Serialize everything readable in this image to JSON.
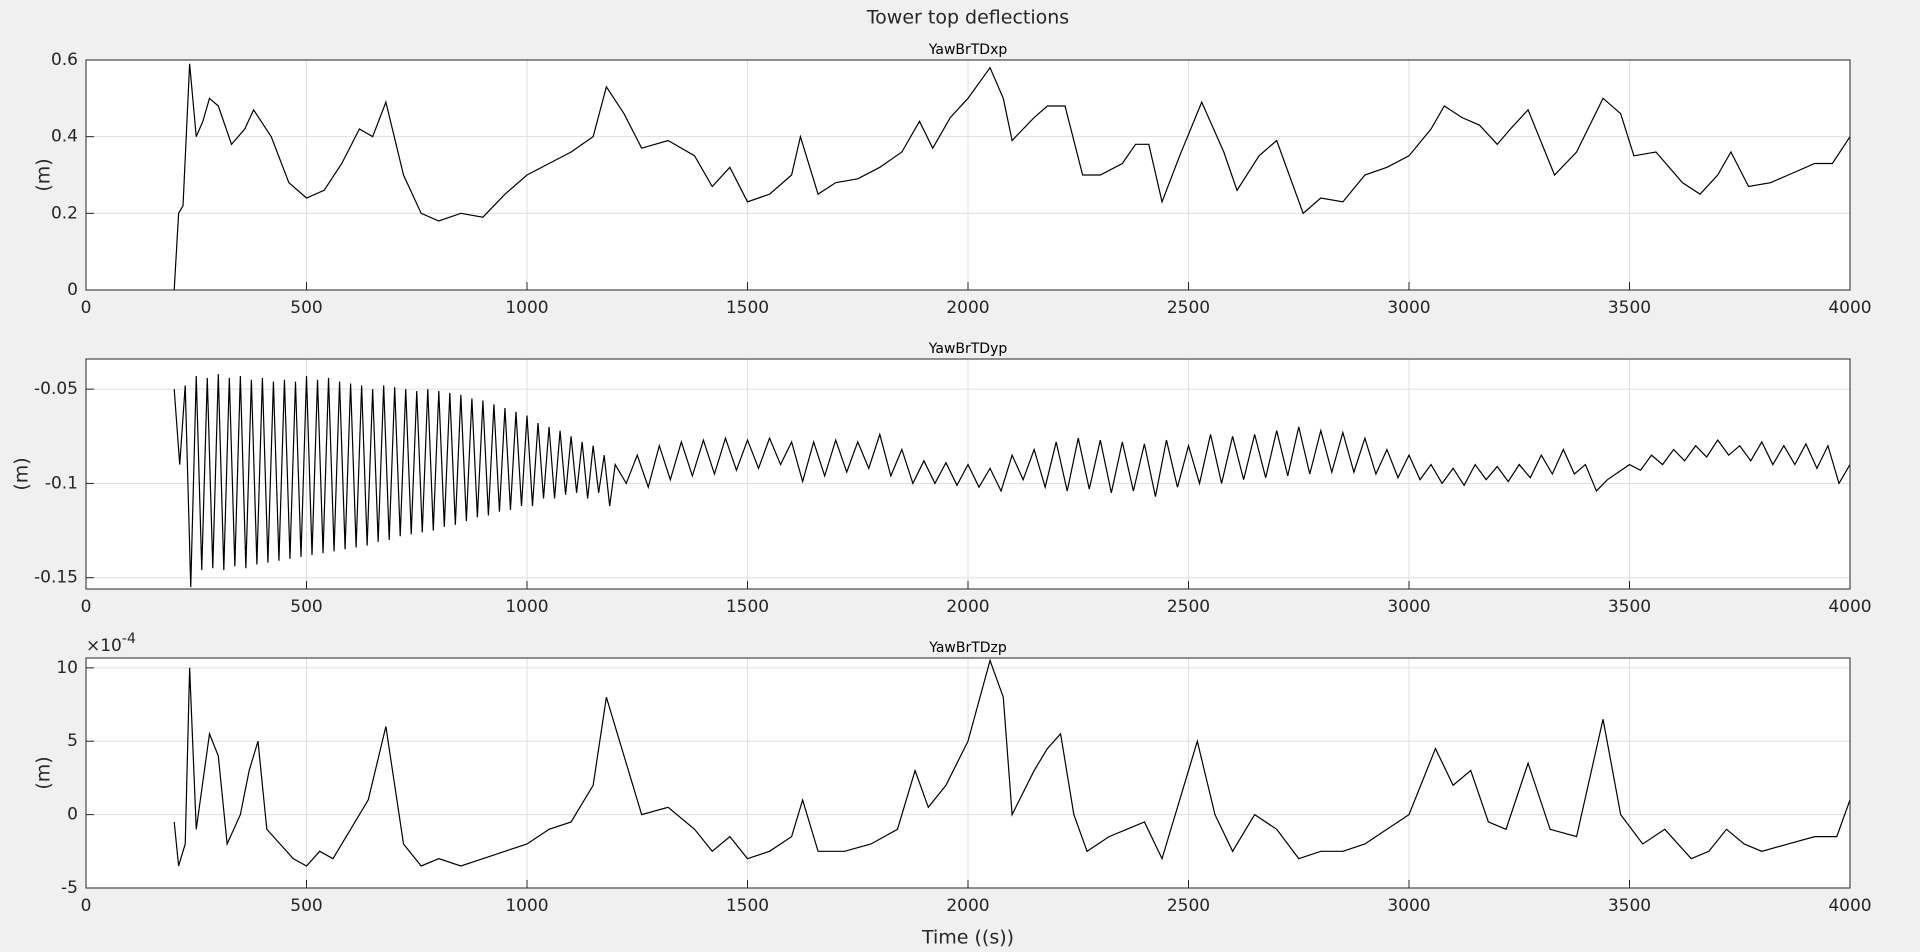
{
  "title": "Tower top deflections",
  "chart_data": [
    {
      "type": "line",
      "title": "YawBrTDxp",
      "ylabel": "(m)",
      "color": "#000000",
      "grid": true,
      "xlim": [
        0,
        4000
      ],
      "xticks": [
        0,
        500,
        1000,
        1500,
        2000,
        2500,
        3000,
        3500,
        4000
      ],
      "ylim": [
        0,
        0.6
      ],
      "yticks": [
        0,
        0.2,
        0.4,
        0.6
      ],
      "x": [
        200,
        210,
        220,
        235,
        250,
        265,
        280,
        300,
        330,
        360,
        380,
        420,
        460,
        500,
        540,
        580,
        620,
        650,
        680,
        720,
        760,
        800,
        850,
        900,
        950,
        1000,
        1050,
        1100,
        1150,
        1180,
        1220,
        1260,
        1320,
        1380,
        1420,
        1460,
        1500,
        1550,
        1600,
        1620,
        1660,
        1700,
        1750,
        1800,
        1850,
        1890,
        1920,
        1960,
        2000,
        2050,
        2080,
        2100,
        2150,
        2180,
        2220,
        2260,
        2300,
        2350,
        2380,
        2410,
        2440,
        2480,
        2530,
        2580,
        2610,
        2660,
        2700,
        2760,
        2800,
        2850,
        2900,
        2950,
        3000,
        3050,
        3080,
        3120,
        3160,
        3200,
        3230,
        3270,
        3330,
        3380,
        3440,
        3480,
        3510,
        3560,
        3620,
        3660,
        3700,
        3730,
        3770,
        3820,
        3860,
        3920,
        3960,
        4000
      ],
      "values": [
        0,
        0.2,
        0.22,
        0.59,
        0.4,
        0.44,
        0.5,
        0.48,
        0.38,
        0.42,
        0.47,
        0.4,
        0.28,
        0.24,
        0.26,
        0.33,
        0.42,
        0.4,
        0.49,
        0.3,
        0.2,
        0.18,
        0.2,
        0.19,
        0.25,
        0.3,
        0.33,
        0.36,
        0.4,
        0.53,
        0.46,
        0.37,
        0.39,
        0.35,
        0.27,
        0.32,
        0.23,
        0.25,
        0.3,
        0.4,
        0.25,
        0.28,
        0.29,
        0.32,
        0.36,
        0.44,
        0.37,
        0.45,
        0.5,
        0.58,
        0.5,
        0.39,
        0.45,
        0.48,
        0.48,
        0.3,
        0.3,
        0.33,
        0.38,
        0.38,
        0.23,
        0.35,
        0.49,
        0.36,
        0.26,
        0.35,
        0.39,
        0.2,
        0.24,
        0.23,
        0.3,
        0.32,
        0.35,
        0.42,
        0.48,
        0.45,
        0.43,
        0.38,
        0.42,
        0.47,
        0.3,
        0.36,
        0.5,
        0.46,
        0.35,
        0.36,
        0.28,
        0.25,
        0.3,
        0.36,
        0.27,
        0.28,
        0.3,
        0.33,
        0.33,
        0.4
      ]
    },
    {
      "type": "line",
      "title": "YawBrTDyp",
      "ylabel": "(m)",
      "color": "#000000",
      "grid": true,
      "xlim": [
        0,
        4000
      ],
      "xticks": [
        0,
        500,
        1000,
        1500,
        2000,
        2500,
        3000,
        3500,
        4000
      ],
      "ylim": [
        -0.156,
        -0.034
      ],
      "yticks": [
        -0.15,
        -0.1,
        -0.05
      ],
      "x": [
        200,
        212.5,
        225,
        237.5,
        250,
        262.5,
        275,
        287.5,
        300,
        312.5,
        325,
        337.5,
        350,
        362.5,
        375,
        387.5,
        400,
        412.5,
        425,
        437.5,
        450,
        462.5,
        475,
        487.5,
        500,
        512.5,
        525,
        537.5,
        550,
        562.5,
        575,
        587.5,
        600,
        612.5,
        625,
        637.5,
        650,
        662.5,
        675,
        687.5,
        700,
        712.5,
        725,
        737.5,
        750,
        762.5,
        775,
        787.5,
        800,
        812.5,
        825,
        837.5,
        850,
        862.5,
        875,
        887.5,
        900,
        912.5,
        925,
        937.5,
        950,
        962.5,
        975,
        987.5,
        1000,
        1012.5,
        1025,
        1037.5,
        1050,
        1062.5,
        1075,
        1087.5,
        1100,
        1112.5,
        1125,
        1137.5,
        1150,
        1162.5,
        1175,
        1187.5,
        1200,
        1225,
        1250,
        1275,
        1300,
        1325,
        1350,
        1375,
        1400,
        1425,
        1450,
        1475,
        1500,
        1525,
        1550,
        1575,
        1600,
        1625,
        1650,
        1675,
        1700,
        1725,
        1750,
        1775,
        1800,
        1825,
        1850,
        1875,
        1900,
        1925,
        1950,
        1975,
        2000,
        2025,
        2050,
        2075,
        2100,
        2125,
        2150,
        2175,
        2200,
        2225,
        2250,
        2275,
        2300,
        2325,
        2350,
        2375,
        2400,
        2425,
        2450,
        2475,
        2500,
        2525,
        2550,
        2575,
        2600,
        2625,
        2650,
        2675,
        2700,
        2725,
        2750,
        2775,
        2800,
        2825,
        2850,
        2875,
        2900,
        2925,
        2950,
        2975,
        3000,
        3025,
        3050,
        3075,
        3100,
        3125,
        3150,
        3175,
        3200,
        3225,
        3250,
        3275,
        3300,
        3325,
        3350,
        3375,
        3400,
        3425,
        3450,
        3475,
        3500,
        3525,
        3550,
        3575,
        3600,
        3625,
        3650,
        3675,
        3700,
        3725,
        3750,
        3775,
        3800,
        3825,
        3850,
        3875,
        3900,
        3925,
        3950,
        3975,
        4000
      ],
      "values": [
        -0.05,
        -0.09,
        -0.048,
        -0.155,
        -0.043,
        -0.146,
        -0.044,
        -0.145,
        -0.042,
        -0.146,
        -0.044,
        -0.144,
        -0.043,
        -0.145,
        -0.045,
        -0.143,
        -0.044,
        -0.142,
        -0.046,
        -0.141,
        -0.045,
        -0.14,
        -0.046,
        -0.139,
        -0.043,
        -0.138,
        -0.045,
        -0.137,
        -0.044,
        -0.136,
        -0.046,
        -0.135,
        -0.047,
        -0.134,
        -0.048,
        -0.133,
        -0.05,
        -0.131,
        -0.048,
        -0.13,
        -0.049,
        -0.128,
        -0.05,
        -0.127,
        -0.051,
        -0.126,
        -0.05,
        -0.125,
        -0.051,
        -0.123,
        -0.052,
        -0.122,
        -0.053,
        -0.12,
        -0.055,
        -0.118,
        -0.056,
        -0.117,
        -0.058,
        -0.115,
        -0.06,
        -0.114,
        -0.062,
        -0.112,
        -0.064,
        -0.112,
        -0.068,
        -0.108,
        -0.07,
        -0.108,
        -0.072,
        -0.106,
        -0.075,
        -0.105,
        -0.078,
        -0.108,
        -0.08,
        -0.105,
        -0.085,
        -0.112,
        -0.09,
        -0.1,
        -0.085,
        -0.102,
        -0.08,
        -0.098,
        -0.078,
        -0.096,
        -0.077,
        -0.095,
        -0.076,
        -0.093,
        -0.077,
        -0.092,
        -0.076,
        -0.09,
        -0.078,
        -0.099,
        -0.078,
        -0.096,
        -0.077,
        -0.094,
        -0.078,
        -0.092,
        -0.074,
        -0.096,
        -0.082,
        -0.1,
        -0.088,
        -0.1,
        -0.089,
        -0.101,
        -0.09,
        -0.102,
        -0.092,
        -0.104,
        -0.085,
        -0.098,
        -0.082,
        -0.102,
        -0.078,
        -0.104,
        -0.076,
        -0.103,
        -0.077,
        -0.105,
        -0.078,
        -0.104,
        -0.079,
        -0.107,
        -0.077,
        -0.102,
        -0.08,
        -0.1,
        -0.074,
        -0.1,
        -0.075,
        -0.098,
        -0.074,
        -0.097,
        -0.072,
        -0.096,
        -0.07,
        -0.095,
        -0.072,
        -0.094,
        -0.073,
        -0.094,
        -0.076,
        -0.095,
        -0.082,
        -0.097,
        -0.085,
        -0.098,
        -0.09,
        -0.1,
        -0.092,
        -0.101,
        -0.09,
        -0.098,
        -0.091,
        -0.099,
        -0.09,
        -0.097,
        -0.085,
        -0.095,
        -0.082,
        -0.095,
        -0.09,
        -0.104,
        -0.098,
        -0.094,
        -0.09,
        -0.093,
        -0.085,
        -0.09,
        -0.082,
        -0.088,
        -0.08,
        -0.086,
        -0.077,
        -0.085,
        -0.08,
        -0.088,
        -0.078,
        -0.09,
        -0.08,
        -0.09,
        -0.079,
        -0.092,
        -0.08,
        -0.1,
        -0.09
      ]
    },
    {
      "type": "line",
      "title": "YawBrTDzp",
      "ylabel": "(m)",
      "xlabel": "Time ((s))",
      "color": "#000000",
      "grid": true,
      "y_multiplier": {
        "base": "×10",
        "exponent": "-4"
      },
      "xlim": [
        0,
        4000
      ],
      "xticks": [
        0,
        500,
        1000,
        1500,
        2000,
        2500,
        3000,
        3500,
        4000
      ],
      "ylim": [
        -5,
        10.67
      ],
      "yticks": [
        -5,
        0,
        5,
        10
      ],
      "x": [
        200,
        210,
        225,
        235,
        250,
        280,
        300,
        320,
        350,
        370,
        390,
        410,
        440,
        470,
        500,
        530,
        560,
        600,
        640,
        680,
        720,
        760,
        800,
        850,
        900,
        950,
        1000,
        1050,
        1100,
        1150,
        1180,
        1220,
        1260,
        1320,
        1380,
        1420,
        1460,
        1500,
        1550,
        1600,
        1625,
        1660,
        1720,
        1780,
        1840,
        1880,
        1910,
        1950,
        2000,
        2050,
        2080,
        2100,
        2150,
        2180,
        2210,
        2240,
        2270,
        2320,
        2360,
        2400,
        2440,
        2480,
        2520,
        2560,
        2600,
        2650,
        2700,
        2750,
        2800,
        2850,
        2900,
        2950,
        3000,
        3060,
        3100,
        3140,
        3180,
        3220,
        3270,
        3320,
        3380,
        3440,
        3480,
        3530,
        3580,
        3640,
        3680,
        3720,
        3760,
        3800,
        3860,
        3920,
        3970,
        4000
      ],
      "values": [
        -0.5,
        -3.5,
        -2,
        10,
        -1,
        5.5,
        4,
        -2,
        0,
        3,
        5,
        -1,
        -2,
        -3,
        -3.5,
        -2.5,
        -3,
        -1,
        1,
        6,
        -2,
        -3.5,
        -3,
        -3.5,
        -3,
        -2.5,
        -2,
        -1,
        -0.5,
        2,
        8,
        4,
        0,
        0.5,
        -1,
        -2.5,
        -1.5,
        -3,
        -2.5,
        -1.5,
        1,
        -2.5,
        -2.5,
        -2,
        -1,
        3,
        0.5,
        2,
        5,
        10.5,
        8,
        0,
        3,
        4.5,
        5.5,
        0,
        -2.5,
        -1.5,
        -1,
        -0.5,
        -3,
        1,
        5,
        0,
        -2.5,
        0,
        -1,
        -3,
        -2.5,
        -2.5,
        -2,
        -1,
        0,
        4.5,
        2,
        3,
        -0.5,
        -1,
        3.5,
        -1,
        -1.5,
        6.5,
        0,
        -2,
        -1,
        -3,
        -2.5,
        -1,
        -2,
        -2.5,
        -2,
        -1.5,
        -1.5,
        1
      ]
    }
  ]
}
